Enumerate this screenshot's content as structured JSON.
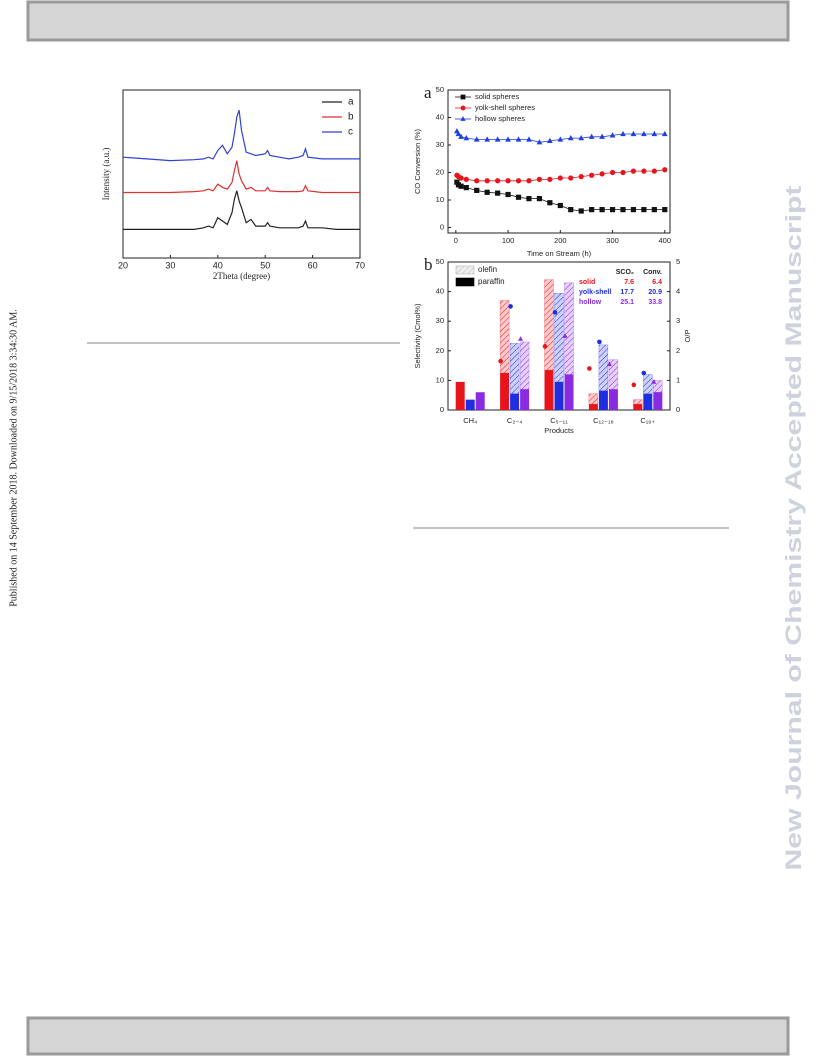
{
  "side_note": "Published on 14 September 2018. Downloaded on 9/15/2018 3:34:30 AM.",
  "watermark": "New Journal of Chemistry Accepted Manuscript",
  "chart_data": [
    {
      "type": "line",
      "x_label": "2Theta (degree)",
      "y_label": "Intensity (a.u.)",
      "x": [
        20,
        25,
        30,
        35,
        37,
        38,
        39,
        40,
        41,
        42,
        43,
        43.5,
        44,
        44.5,
        45,
        46,
        47,
        48,
        50,
        50.5,
        51,
        53,
        55,
        57,
        58,
        58.5,
        59,
        62,
        65,
        70
      ],
      "series": [
        {
          "name": "a",
          "color": "#222222",
          "values": [
            17,
            17,
            17,
            17,
            18,
            19,
            18,
            24,
            22,
            20,
            27,
            35,
            40,
            34,
            30,
            21,
            23,
            19,
            19,
            21,
            19,
            18,
            18,
            18,
            19,
            22,
            18,
            18,
            17,
            17
          ]
        },
        {
          "name": "b",
          "color": "#e03030",
          "values": [
            39,
            39,
            39,
            39.5,
            40,
            41,
            40,
            44,
            42,
            41,
            45,
            52,
            58,
            50,
            46,
            41,
            42,
            40,
            40,
            42,
            40,
            39.5,
            39.5,
            39.5,
            40,
            43,
            40,
            39,
            39,
            39
          ]
        },
        {
          "name": "c",
          "color": "#3040d8",
          "values": [
            60,
            59,
            58,
            58.5,
            59,
            60,
            59,
            64,
            67,
            62,
            66,
            74,
            84,
            88,
            76,
            63,
            62,
            61,
            62,
            64,
            61,
            60,
            59,
            60,
            61,
            65,
            60,
            59,
            59,
            59
          ]
        }
      ],
      "xlim": [
        20,
        70
      ],
      "xticks": [
        20,
        30,
        40,
        50,
        60,
        70
      ],
      "ylim": [
        0,
        100
      ],
      "legend": "upper right"
    },
    {
      "type": "line",
      "panel_label": "a",
      "x_label": "Time on Stream (h)",
      "y_label": "CO Conversion (%)",
      "x": [
        2,
        5,
        10,
        20,
        40,
        60,
        80,
        100,
        120,
        140,
        160,
        180,
        200,
        220,
        240,
        260,
        280,
        300,
        320,
        340,
        360,
        380,
        400
      ],
      "series": [
        {
          "name": "solid spheres",
          "color": "#111111",
          "marker": "square",
          "values": [
            16.5,
            15.5,
            15,
            14.5,
            13.5,
            12.8,
            12.5,
            12,
            11,
            10.5,
            10.5,
            9,
            8,
            6.5,
            6,
            6.5,
            6.5,
            6.5,
            6.5,
            6.5,
            6.5,
            6.5,
            6.5
          ]
        },
        {
          "name": "yolk-shell spheres",
          "color": "#e8141c",
          "marker": "circle",
          "values": [
            19,
            18.5,
            18,
            17.5,
            17,
            17,
            17,
            17,
            17,
            17,
            17.5,
            17.5,
            18,
            18,
            18.5,
            19,
            19.5,
            20,
            20,
            20.5,
            20.5,
            20.5,
            21
          ]
        },
        {
          "name": "hollow spheres",
          "color": "#1f3fe0",
          "marker": "triangle",
          "values": [
            35,
            34,
            33,
            32.5,
            32,
            32,
            32,
            32,
            32,
            32,
            31,
            31.5,
            32,
            32.5,
            32.5,
            33,
            33,
            33.5,
            34,
            34,
            34,
            34,
            34
          ]
        }
      ],
      "xlim": [
        -15,
        410
      ],
      "xticks": [
        0,
        100,
        200,
        300,
        400
      ],
      "ylim": [
        -2,
        50
      ],
      "yticks": [
        0,
        10,
        20,
        30,
        40,
        50
      ],
      "legend": "upper left"
    },
    {
      "type": "bar",
      "panel_label": "b",
      "x_label": "Products",
      "y_label": "Selectivity (Cmol%)",
      "y2_label": "O/P",
      "categories": [
        "CH₄",
        "C₂₋₄",
        "C₅₋₁₁",
        "C₁₂₋₁₈",
        "C₁₉₊"
      ],
      "legend": [
        {
          "name": "olefin",
          "color": "#b8b8b8"
        },
        {
          "name": "paraffin",
          "color": "#000000"
        }
      ],
      "table_headers": [
        "SCO₂",
        "Conv."
      ],
      "groups": [
        {
          "name": "solid",
          "color": "#e8141c",
          "marker": "circle",
          "paraffin": [
            9.5,
            12.5,
            13.5,
            2,
            2
          ],
          "olefin": [
            0,
            24.5,
            30.5,
            3.5,
            1.5
          ],
          "o_p": [
            null,
            1.65,
            2.15,
            1.4,
            0.85
          ],
          "s_co2": 7.6,
          "conv": 6.4
        },
        {
          "name": "yolk-shell",
          "color": "#1f2fe0",
          "marker": "circle",
          "paraffin": [
            3.5,
            5.5,
            9.5,
            6.5,
            5.5
          ],
          "olefin": [
            0,
            17,
            30,
            15.5,
            6.5
          ],
          "o_p": [
            null,
            3.5,
            3.3,
            2.3,
            1.25
          ],
          "s_co2": 17.7,
          "conv": 20.9
        },
        {
          "name": "hollow",
          "color": "#8a2be2",
          "marker": "triangle",
          "paraffin": [
            6,
            7,
            12,
            7,
            6
          ],
          "olefin": [
            0,
            16,
            31,
            10,
            4
          ],
          "o_p": [
            null,
            2.4,
            2.5,
            1.55,
            0.95
          ],
          "s_co2": 25.1,
          "conv": 33.8
        }
      ],
      "ylim": [
        0,
        50
      ],
      "yticks": [
        0,
        10,
        20,
        30,
        40,
        50
      ],
      "y2lim": [
        0,
        5
      ],
      "y2ticks": [
        0,
        1,
        2,
        3,
        4,
        5
      ]
    }
  ]
}
